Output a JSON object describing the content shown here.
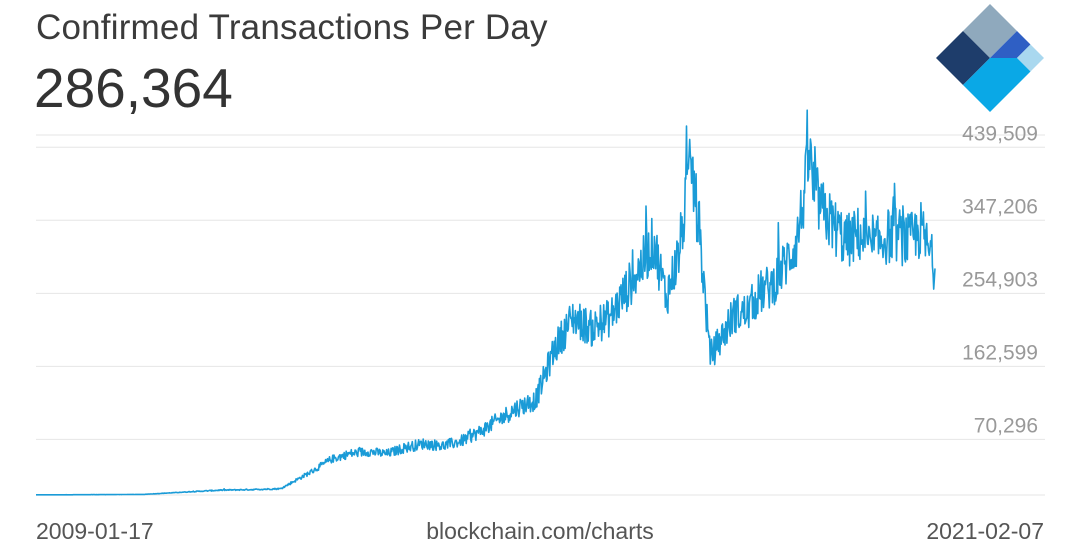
{
  "header": {
    "title": "Confirmed Transactions Per Day",
    "value": "286,364"
  },
  "brand": {
    "logo_icon": "blockchain-logo-icon",
    "colors": {
      "dark_navy": "#1e3d6b",
      "light_steel": "#8fa9bd",
      "blue": "#2f5fc4",
      "light_blue": "#a9d8ef",
      "cyan": "#0aa8e6"
    }
  },
  "footer": {
    "start_date": "2009-01-17",
    "source": "blockchain.com/charts",
    "end_date": "2021-02-07"
  },
  "chart_data": {
    "type": "line",
    "title": "Confirmed Transactions Per Day",
    "x_range": [
      "2009-01-17",
      "2021-02-07"
    ],
    "y_ticks": [
      70296,
      162599,
      254903,
      347206,
      439509
    ],
    "y_tick_labels": [
      "70,296",
      "162,599",
      "254,903",
      "347,206",
      "439,509"
    ],
    "ylim": [
      0,
      455000
    ],
    "grid": true,
    "line_color": "#1a9bd7",
    "series": [
      {
        "x": [
          "2009-01-17",
          "2009-07-01",
          "2010-01-01",
          "2010-07-01",
          "2011-01-01",
          "2011-07-01",
          "2012-01-01",
          "2012-05-01",
          "2012-07-01",
          "2012-10-01",
          "2013-01-01",
          "2013-04-01",
          "2013-07-01",
          "2013-10-01",
          "2014-01-01",
          "2014-04-01",
          "2014-07-01",
          "2014-10-01",
          "2015-01-01",
          "2015-04-01",
          "2015-07-01",
          "2015-10-01",
          "2016-01-01",
          "2016-04-01",
          "2016-07-01",
          "2016-10-01",
          "2017-01-01",
          "2017-03-01",
          "2017-05-01",
          "2017-07-01",
          "2017-09-01",
          "2017-11-01",
          "2017-12-15",
          "2018-02-01",
          "2018-04-01",
          "2018-06-01",
          "2018-08-01",
          "2018-10-01",
          "2018-12-01",
          "2019-02-01",
          "2019-04-01",
          "2019-05-15",
          "2019-06-01",
          "2019-06-20",
          "2019-08-01",
          "2019-10-01",
          "2019-12-01",
          "2020-02-01",
          "2020-04-01",
          "2020-06-01",
          "2020-08-01",
          "2020-10-01",
          "2020-12-01",
          "2021-02-07"
        ],
        "y": [
          200,
          300,
          500,
          800,
          3500,
          6000,
          7000,
          8000,
          17000,
          30000,
          45000,
          52000,
          55000,
          52000,
          60000,
          65000,
          62000,
          68000,
          80000,
          95000,
          110000,
          120000,
          185000,
          225000,
          210000,
          225000,
          265000,
          290000,
          320000,
          250000,
          305000,
          420000,
          320000,
          175000,
          200000,
          230000,
          230000,
          255000,
          265000,
          290000,
          320000,
          390000,
          435000,
          390000,
          360000,
          340000,
          320000,
          330000,
          310000,
          325000,
          330000,
          320000,
          335000,
          286364
        ]
      }
    ]
  }
}
